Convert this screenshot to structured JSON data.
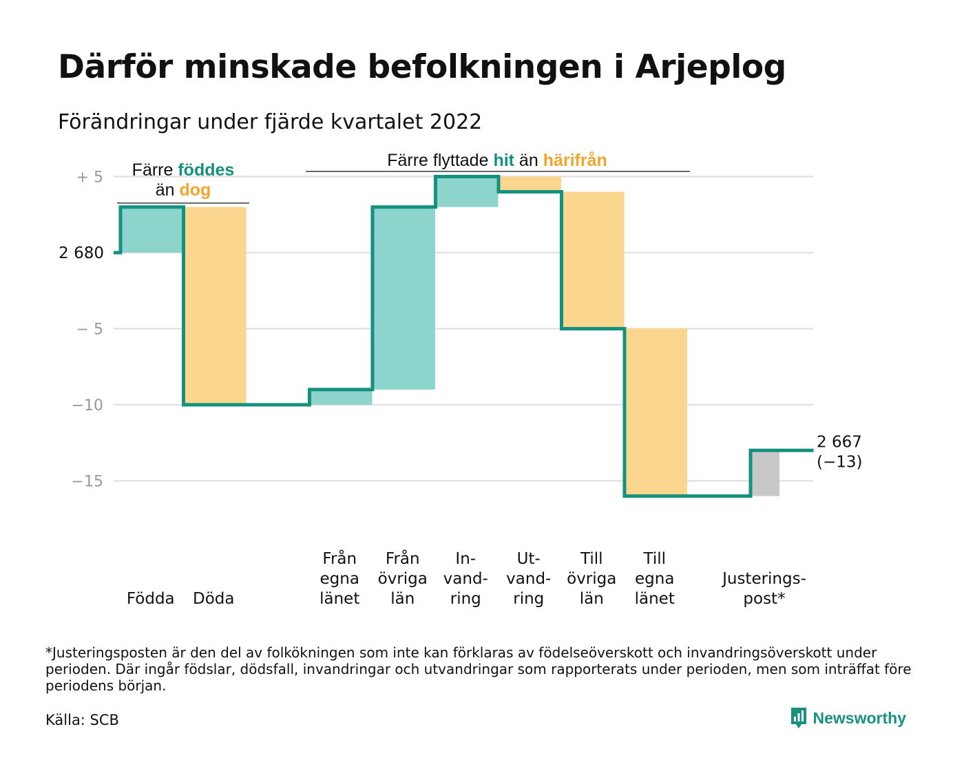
{
  "title": "Därför minskade befolkningen i Arjeplog",
  "subtitle": "Förändringar under fjärde kvartalet 2022",
  "footnote": "*Justeringsposten är den del av folkökningen som inte kan förklaras av födelseöverskott och invandringsöverskott under perioden. Där ingår födslar, dödsfall, invandringar och utvandringar som rapporterats under perioden, men som inträffat före periodens början.",
  "source": "Källa: SCB",
  "brand": "Newsworthy",
  "colors": {
    "increase": "#8dd5cc",
    "decrease": "#fad68e",
    "adjustment": "#c8c8c8",
    "line": "#15927f",
    "grid": "#e2e2e2",
    "tick": "#999999",
    "accent_green": "#15927f",
    "accent_orange": "#f2a42c"
  },
  "annotations": {
    "births": {
      "line1": "Färre ",
      "line1_hl": "föddes",
      "line2": "än ",
      "line2_hl": "dog"
    },
    "migration": {
      "text1": "Färre flyttade ",
      "hl1": "hit",
      "text2": " än ",
      "hl2": "härifrån"
    }
  },
  "chart_data": {
    "type": "waterfall",
    "title": "Därför minskade befolkningen i Arjeplog",
    "subtitle": "Förändringar under fjärde kvartalet 2022",
    "start_label": "2 680",
    "start_value": 2680,
    "end_label": [
      "2 667",
      "(−13)"
    ],
    "end_value": 2667,
    "y_ticks": [
      {
        "value": 5,
        "label": "+ 5"
      },
      {
        "value": 0,
        "label": ""
      },
      {
        "value": -5,
        "label": "− 5"
      },
      {
        "value": -10,
        "label": "−10"
      },
      {
        "value": -15,
        "label": "−15"
      }
    ],
    "ylim": [
      -16,
      5
    ],
    "grid": true,
    "steps": [
      {
        "label": [
          "Födda"
        ],
        "value": 3,
        "kind": "increase"
      },
      {
        "label": [
          "Döda"
        ],
        "value": -13,
        "kind": "decrease"
      },
      {
        "label": [],
        "value": 0,
        "kind": "gap"
      },
      {
        "label": [
          "Från",
          "egna",
          "länet"
        ],
        "value": 1,
        "kind": "increase"
      },
      {
        "label": [
          "Från",
          "övriga",
          "län"
        ],
        "value": 12,
        "kind": "increase"
      },
      {
        "label": [
          "In-",
          "vand-",
          "ring"
        ],
        "value": 2,
        "kind": "increase"
      },
      {
        "label": [
          "Ut-",
          "vand-",
          "ring"
        ],
        "value": -1,
        "kind": "decrease"
      },
      {
        "label": [
          "Till",
          "övriga",
          "län"
        ],
        "value": -9,
        "kind": "decrease"
      },
      {
        "label": [
          "Till",
          "egna",
          "länet"
        ],
        "value": -11,
        "kind": "decrease"
      },
      {
        "label": [],
        "value": 0,
        "kind": "gap"
      },
      {
        "label": [
          "Justerings-",
          "post*"
        ],
        "value": 3,
        "kind": "adjustment"
      }
    ]
  }
}
